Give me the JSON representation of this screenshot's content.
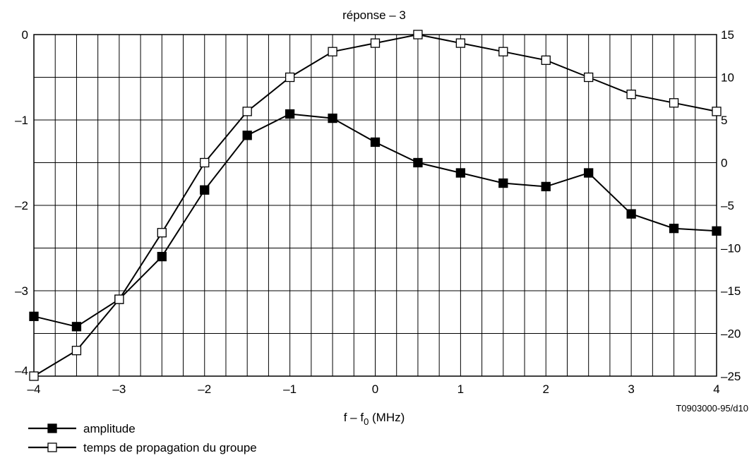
{
  "chart_data": {
    "type": "line",
    "title": "réponse – 3",
    "xlabel": "f – f",
    "xlabel_subscript": "0",
    "xlabel_unit": " (MHz)",
    "reference": "T0903000-95/d10",
    "xlim": [
      -4,
      4
    ],
    "ylim_left": [
      -4,
      0
    ],
    "ylim_right": [
      -25,
      15
    ],
    "grid": true,
    "x_ticks": [
      -4,
      -3,
      -2,
      -1,
      0,
      1,
      2,
      3,
      4
    ],
    "x_tick_labels": [
      "–4",
      "–3",
      "–2",
      "–1",
      "0",
      "1",
      "2",
      "3",
      "4"
    ],
    "y_left_ticks": [
      0,
      -1,
      -2,
      -3,
      -4
    ],
    "y_left_tick_labels": [
      "0",
      "–1",
      "–2",
      "–3",
      "–4"
    ],
    "y_right_ticks": [
      15,
      10,
      5,
      0,
      -5,
      -10,
      -15,
      -20,
      -25
    ],
    "y_right_tick_labels": [
      "15",
      "10",
      "5",
      "0",
      "–5",
      "–10",
      "–15",
      "–20",
      "–25"
    ],
    "legend_position": "bottom-left",
    "series": [
      {
        "name": "amplitude",
        "axis": "left",
        "marker": "filled-square",
        "x": [
          -4,
          -3.5,
          -3,
          -2.5,
          -2,
          -1.5,
          -1,
          -0.5,
          0,
          0.5,
          1,
          1.5,
          2,
          2.5,
          3,
          3.5,
          4
        ],
        "y": [
          -3.3,
          -3.42,
          -3.1,
          -2.6,
          -1.82,
          -1.18,
          -0.93,
          -0.98,
          -1.26,
          -1.5,
          -1.62,
          -1.74,
          -1.78,
          -1.62,
          -2.1,
          -2.27,
          -2.3
        ]
      },
      {
        "name": "temps de propagation du groupe",
        "axis": "right",
        "marker": "open-square",
        "x": [
          -4,
          -3.5,
          -3,
          -2.5,
          -2,
          -1.5,
          -1,
          -0.5,
          0,
          0.5,
          1,
          1.5,
          2,
          2.5,
          3,
          3.5,
          4
        ],
        "y": [
          -25,
          -22,
          -16,
          -8.2,
          0,
          6,
          10,
          13,
          14,
          15,
          14,
          13,
          12,
          10,
          8,
          7,
          6
        ]
      }
    ]
  }
}
